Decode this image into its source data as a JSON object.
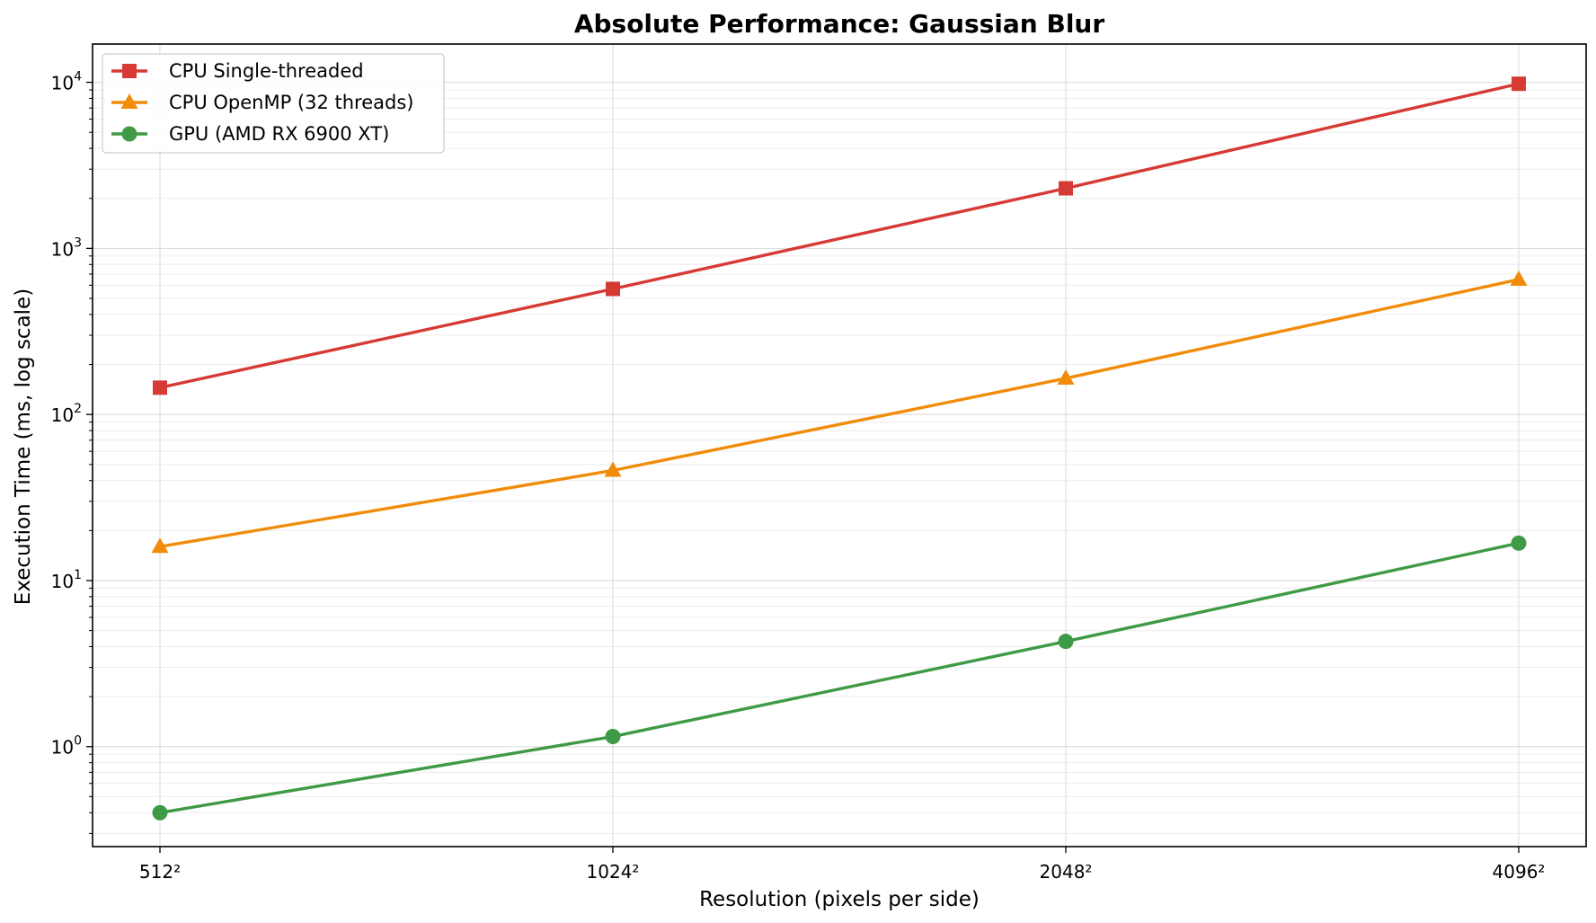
{
  "chart_data": {
    "type": "line",
    "title": "Absolute Performance: Gaussian Blur",
    "xlabel": "Resolution (pixels per side)",
    "ylabel": "Execution Time (ms, log scale)",
    "categories": [
      "512²",
      "1024²",
      "2048²",
      "4096²"
    ],
    "y_scale": "log",
    "ylim": [
      0.25,
      17000
    ],
    "y_ticks": [
      {
        "value": 1,
        "base": "10",
        "exp": "0"
      },
      {
        "value": 10,
        "base": "10",
        "exp": "1"
      },
      {
        "value": 100,
        "base": "10",
        "exp": "2"
      },
      {
        "value": 1000,
        "base": "10",
        "exp": "3"
      },
      {
        "value": 10000,
        "base": "10",
        "exp": "4"
      }
    ],
    "grid": true,
    "legend_position": "top-left",
    "series": [
      {
        "name": "CPU Single-threaded",
        "color": "#d63a34",
        "marker": "square",
        "values": [
          145,
          570,
          2300,
          9800
        ]
      },
      {
        "name": "CPU OpenMP (32 threads)",
        "color": "#f08c0a",
        "marker": "triangle",
        "values": [
          16,
          46,
          165,
          650
        ]
      },
      {
        "name": "GPU (AMD RX 6900 XT)",
        "color": "#3f9a45",
        "marker": "circle",
        "values": [
          0.4,
          1.15,
          4.3,
          16.8
        ]
      }
    ]
  }
}
